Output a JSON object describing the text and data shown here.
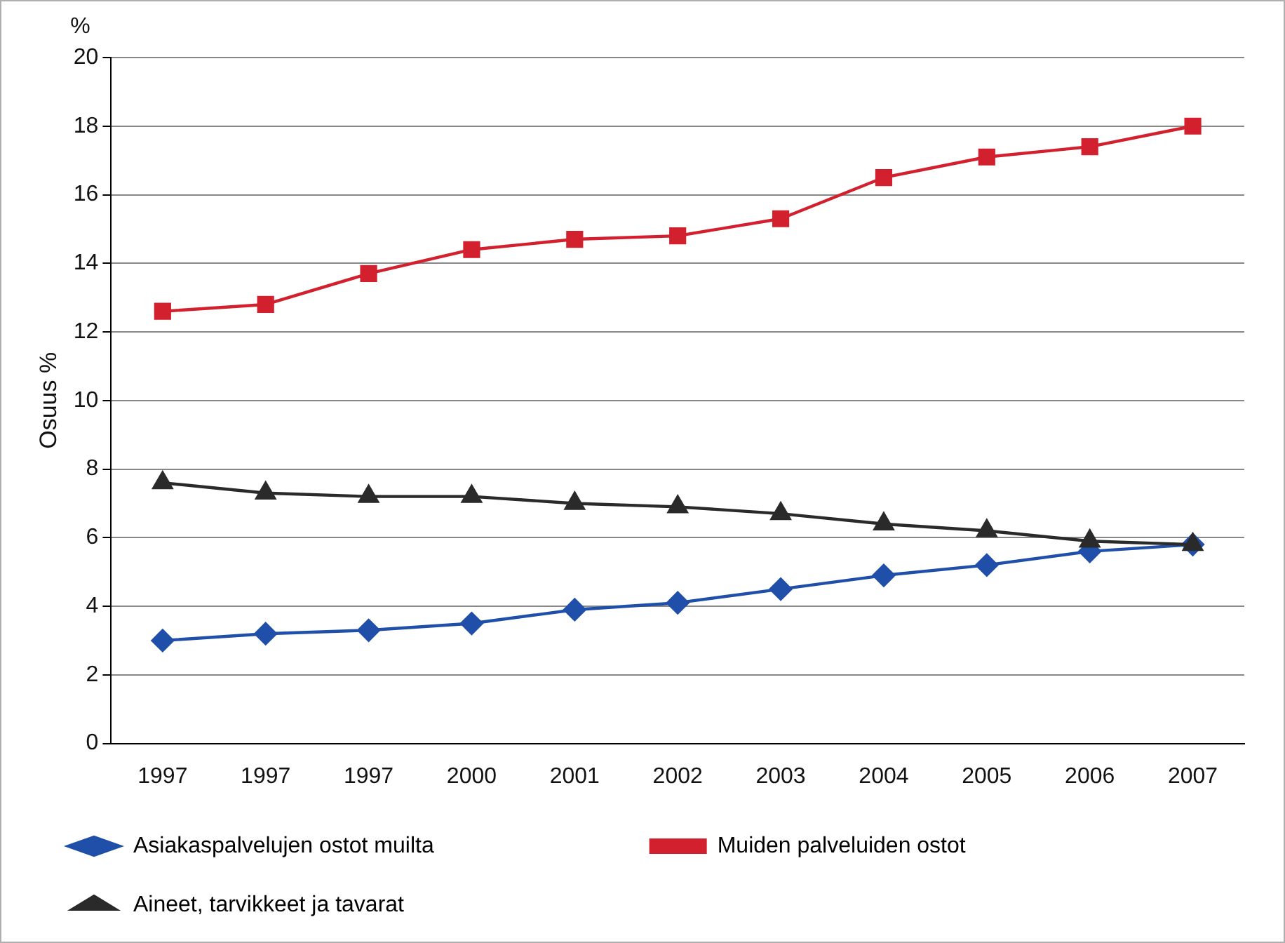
{
  "chart_data": {
    "type": "line",
    "ylabel": "Osuus %",
    "annotations": [
      "%"
    ],
    "categories": [
      "1997",
      "1997",
      "1997",
      "2000",
      "2001",
      "2002",
      "2003",
      "2004",
      "2005",
      "2006",
      "2007"
    ],
    "series": [
      {
        "name": "Asiakaspalvelujen ostot muilta",
        "color": "#1f4fa8",
        "marker": "diamond",
        "values": [
          3.0,
          3.2,
          3.3,
          3.5,
          3.9,
          4.1,
          4.5,
          4.9,
          5.2,
          5.6,
          5.8
        ]
      },
      {
        "name": "Muiden palveluiden ostot",
        "color": "#d2202f",
        "marker": "square",
        "values": [
          12.6,
          12.8,
          13.7,
          14.4,
          14.7,
          14.8,
          15.3,
          16.5,
          17.1,
          17.4,
          18.0
        ]
      },
      {
        "name": "Aineet, tarvikkeet ja tavarat",
        "color": "#2a2a2a",
        "marker": "triangle",
        "values": [
          7.6,
          7.3,
          7.2,
          7.2,
          7.0,
          6.9,
          6.7,
          6.4,
          6.2,
          5.9,
          5.8
        ]
      }
    ],
    "ylim": [
      0,
      20
    ],
    "yticks": [
      0,
      2,
      4,
      6,
      8,
      10,
      12,
      14,
      16,
      18,
      20
    ],
    "grid": "y",
    "legend": "bottom"
  }
}
